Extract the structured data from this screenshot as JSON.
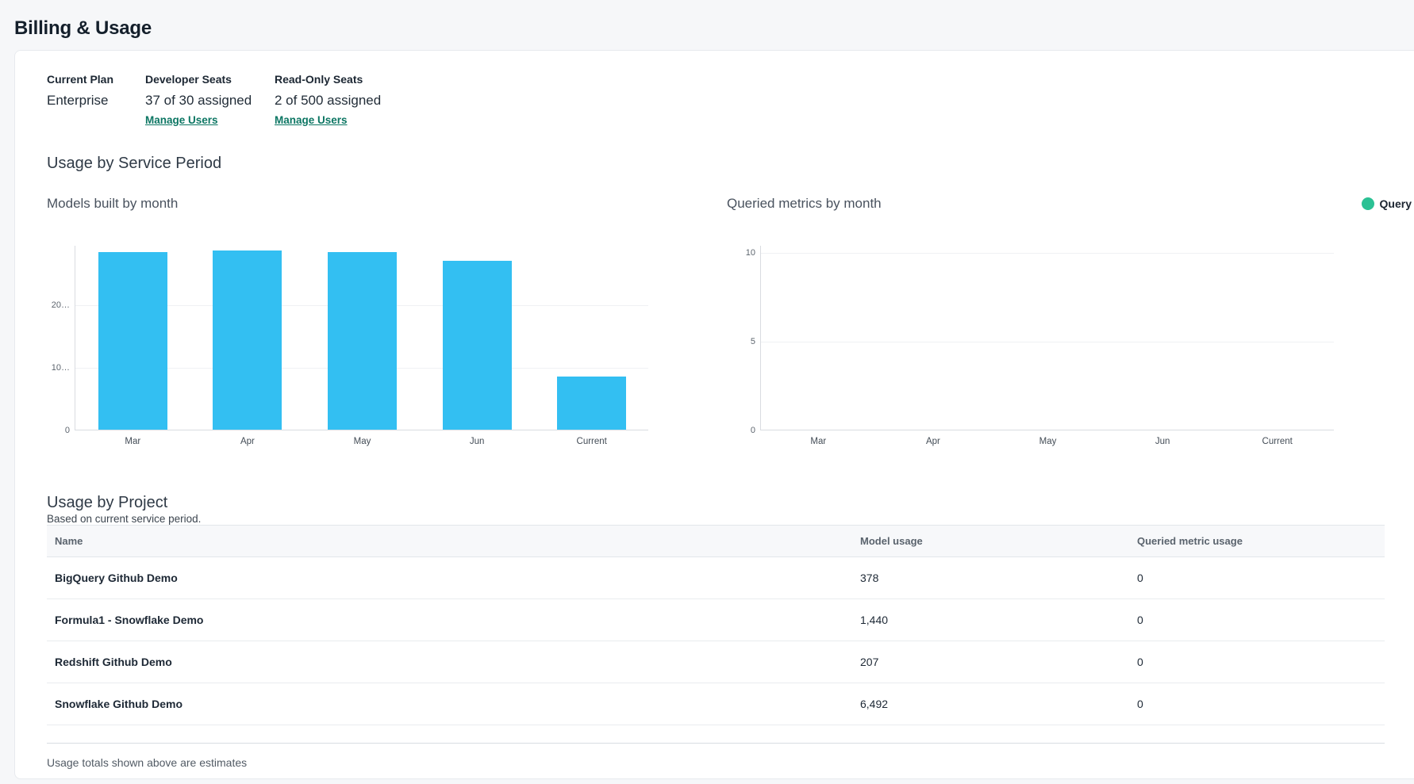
{
  "page": {
    "title": "Billing & Usage"
  },
  "plan": {
    "current_plan": {
      "label": "Current Plan",
      "value": "Enterprise"
    },
    "developer_seats": {
      "label": "Developer Seats",
      "value": "37 of 30 assigned",
      "link": "Manage Users"
    },
    "readonly_seats": {
      "label": "Read-Only Seats",
      "value": "2 of 500 assigned",
      "link": "Manage Users"
    }
  },
  "sections": {
    "service_period_heading": "Usage by Service Period",
    "project_heading": "Usage by Project",
    "project_subheading": "Based on current service period.",
    "footnote": "Usage totals shown above are estimates"
  },
  "chart_data": [
    {
      "type": "bar",
      "title": "Models built by month",
      "categories": [
        "Mar",
        "Apr",
        "May",
        "Jun",
        "Current"
      ],
      "values": [
        28400,
        28600,
        28400,
        27000,
        8517
      ],
      "ylim": [
        0,
        29500
      ],
      "yticks": [
        {
          "value": 0,
          "label": "0"
        },
        {
          "value": 10000,
          "label": "10…"
        },
        {
          "value": 20000,
          "label": "20…"
        }
      ],
      "bar_color": "#33bff2",
      "grid": true,
      "legend": null
    },
    {
      "type": "bar",
      "title": "Queried metrics by month",
      "categories": [
        "Mar",
        "Apr",
        "May",
        "Jun",
        "Current"
      ],
      "values": [
        0,
        0,
        0,
        0,
        0
      ],
      "ylim": [
        0,
        10.4
      ],
      "yticks": [
        {
          "value": 0,
          "label": "0"
        },
        {
          "value": 5,
          "label": "5"
        },
        {
          "value": 10,
          "label": "10"
        }
      ],
      "bar_color": "#2bc194",
      "grid": true,
      "legend": {
        "label": "Query",
        "color": "#2bc194",
        "position": "top-right"
      }
    }
  ],
  "usage_by_project": {
    "table": {
      "columns": [
        "Name",
        "Model usage",
        "Queried metric usage"
      ],
      "rows": [
        {
          "name": "BigQuery Github Demo",
          "model_usage": "378",
          "queried_metric_usage": "0"
        },
        {
          "name": "Formula1 - Snowflake Demo",
          "model_usage": "1,440",
          "queried_metric_usage": "0"
        },
        {
          "name": "Redshift Github Demo",
          "model_usage": "207",
          "queried_metric_usage": "0"
        },
        {
          "name": "Snowflake Github Demo",
          "model_usage": "6,492",
          "queried_metric_usage": "0"
        }
      ]
    }
  },
  "colors": {
    "bar_blue": "#33bff2",
    "legend_green": "#2bc194",
    "link_teal": "#0c7663",
    "page_bg": "#f6f7f9"
  }
}
